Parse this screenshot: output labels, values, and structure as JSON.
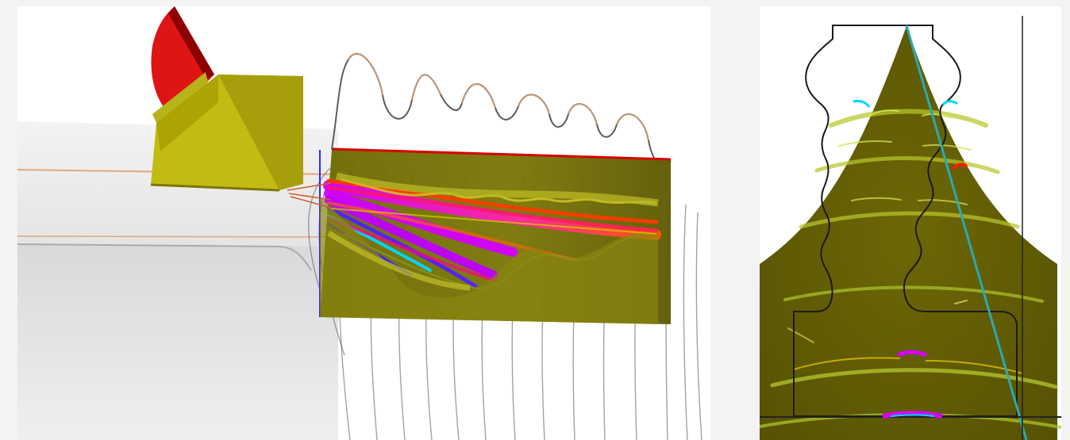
{
  "figure": {
    "layout": "two-panel",
    "left_view": "3d-perspective",
    "right_view": "2d-cross-section"
  },
  "colors": {
    "background": "#ffffff",
    "page": "#f3f3f3",
    "outline": "#2c2c2c",
    "olive": "#6f6a05",
    "yellow_green": "#b9ba24",
    "magenta": "#d600ff",
    "blue": "#4b2cff",
    "cyan": "#00d9ff",
    "red": "#df0b00",
    "orange": "#d98a3a",
    "teal_line": "#24a9b6"
  },
  "icons": {
    "transducer": "transducer-icon",
    "wedge": "wedge-icon"
  }
}
